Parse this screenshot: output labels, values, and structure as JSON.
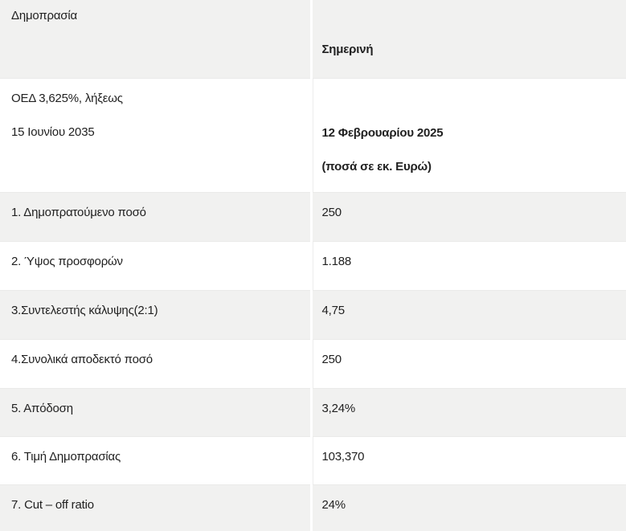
{
  "table": {
    "header": {
      "col1": "Δημοπρασία",
      "col2": "Σημερινή"
    },
    "subheader": {
      "col1_line1": "ΟΕΔ 3,625%, λήξεως",
      "col1_line2": "15 Ιουνίου 2035",
      "col2_line1": "12 Φεβρουαρίου 2025",
      "col2_line2": "(ποσά σε εκ. Ευρώ)"
    },
    "rows": [
      {
        "label": "1. Δημοπρατούμενο ποσό",
        "value": "250"
      },
      {
        "label": "2. Ύψος προσφορών",
        "value": "1.188"
      },
      {
        "label": "3.Συντελεστής κάλυψης(2:1)",
        "value": "4,75"
      },
      {
        "label": "4.Συνολικά αποδεκτό ποσό",
        "value": "250"
      },
      {
        "label": "5. Απόδοση",
        "value": "3,24%"
      },
      {
        "label": "6. Τιμή Δημοπρασίας",
        "value": "103,370"
      },
      {
        "label": "7. Cut – off ratio",
        "value": "24%"
      }
    ],
    "colors": {
      "row_stripe": "#f1f1f0",
      "row_plain": "#ffffff",
      "text": "#212121",
      "column_divider": "#ffffff"
    }
  }
}
